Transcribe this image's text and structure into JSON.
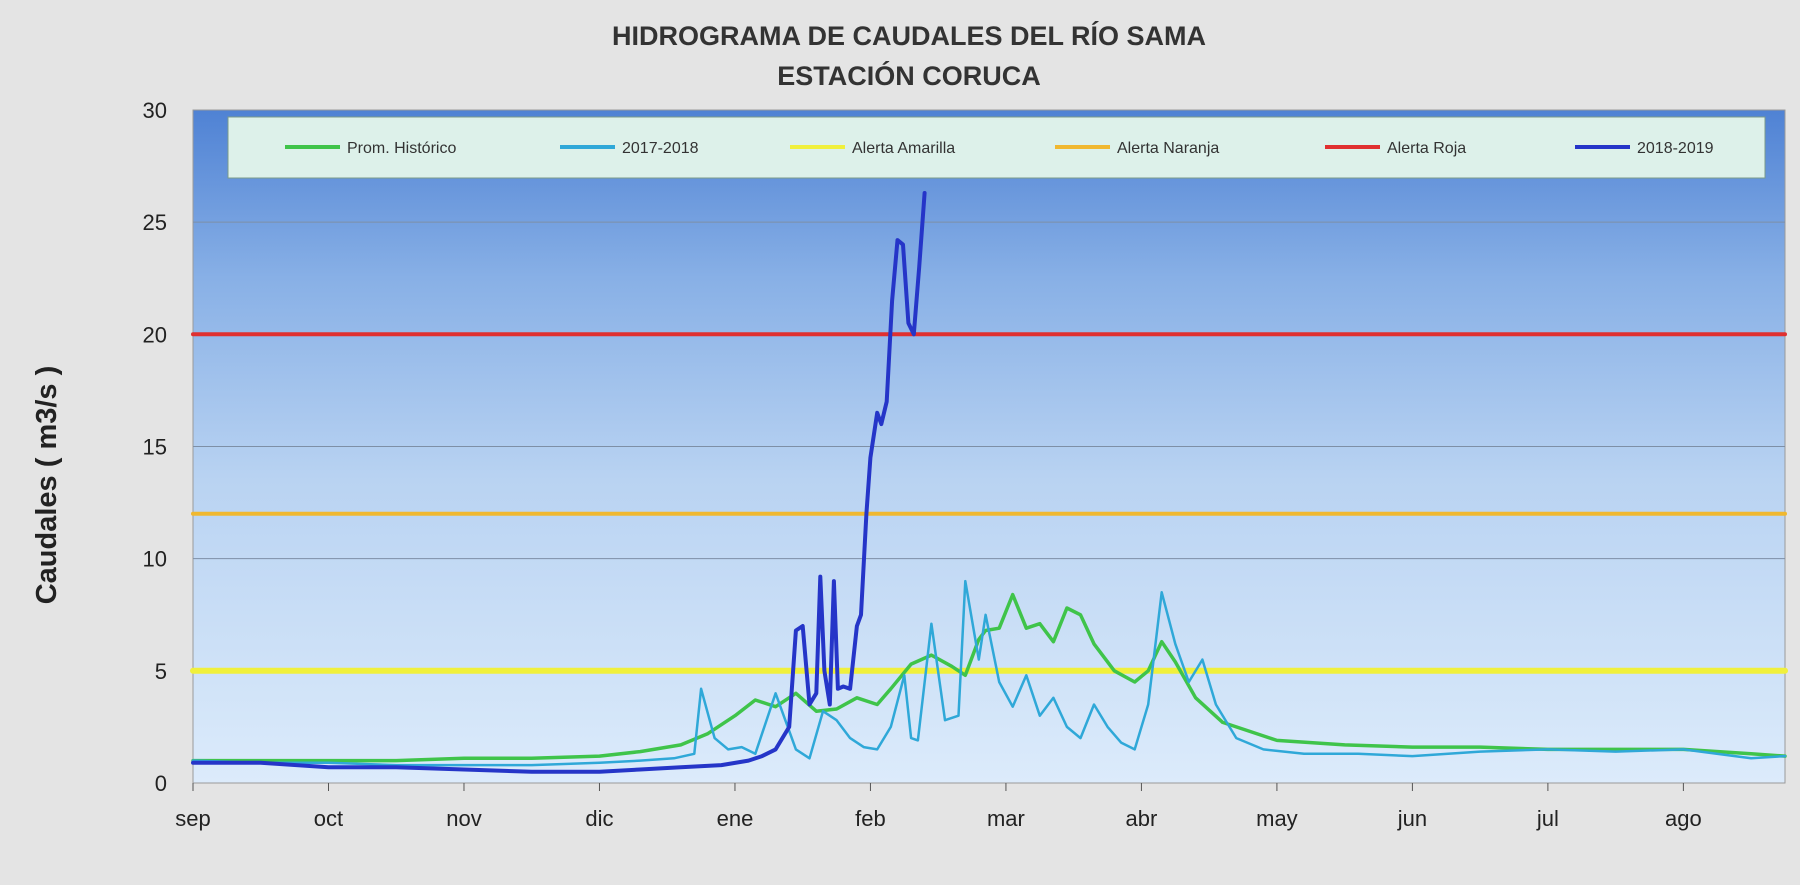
{
  "chart_data": {
    "type": "line",
    "title": "HIDROGRAMA DE CAUDALES DEL RÍO SAMA",
    "subtitle": "ESTACIÓN CORUCA",
    "xlabel": "",
    "ylabel": "Caudales ( m3/s )",
    "ylim": [
      0,
      30
    ],
    "yticks": [
      "0",
      "5",
      "10",
      "15",
      "20",
      "25",
      "30"
    ],
    "xlim": [
      0,
      11.75
    ],
    "xticks": [
      "sep",
      "oct",
      "nov",
      "dic",
      "ene",
      "feb",
      "mar",
      "abr",
      "may",
      "jun",
      "jul",
      "ago"
    ],
    "grid": true,
    "legend_position": "top",
    "colors": {
      "prom_historico": "#3fc44a",
      "y2017_2018": "#2fa8d8",
      "alerta_amarilla": "#f0f03c",
      "alerta_naranja": "#f0b830",
      "alerta_roja": "#e03030",
      "y2018_2019": "#2535c8"
    },
    "series": [
      {
        "name": "Prom. Histórico",
        "color": "#3fc44a",
        "x": [
          0,
          0.5,
          1,
          1.5,
          2,
          2.5,
          3,
          3.3,
          3.6,
          3.8,
          4.0,
          4.15,
          4.3,
          4.45,
          4.6,
          4.75,
          4.9,
          5.05,
          5.15,
          5.3,
          5.45,
          5.6,
          5.7,
          5.8,
          5.85,
          5.95,
          6.05,
          6.15,
          6.25,
          6.35,
          6.45,
          6.55,
          6.65,
          6.8,
          6.95,
          7.05,
          7.15,
          7.25,
          7.4,
          7.6,
          7.8,
          8.0,
          8.5,
          9,
          9.5,
          10,
          10.5,
          11,
          11.5,
          11.75
        ],
        "y": [
          1.0,
          1.0,
          1.0,
          1.0,
          1.1,
          1.1,
          1.2,
          1.4,
          1.7,
          2.2,
          3.0,
          3.7,
          3.4,
          4.0,
          3.2,
          3.3,
          3.8,
          3.5,
          4.2,
          5.3,
          5.7,
          5.2,
          4.8,
          6.4,
          6.8,
          6.9,
          8.4,
          6.9,
          7.1,
          6.3,
          7.8,
          7.5,
          6.2,
          5.0,
          4.5,
          5.0,
          6.3,
          5.4,
          3.8,
          2.7,
          2.3,
          1.9,
          1.7,
          1.6,
          1.6,
          1.5,
          1.5,
          1.5,
          1.3,
          1.2
        ]
      },
      {
        "name": "2017-2018",
        "color": "#2fa8d8",
        "x": [
          0,
          0.5,
          1,
          1.5,
          2,
          2.5,
          3,
          3.3,
          3.55,
          3.7,
          3.75,
          3.85,
          3.95,
          4.05,
          4.15,
          4.3,
          4.45,
          4.55,
          4.65,
          4.75,
          4.85,
          4.95,
          5.05,
          5.15,
          5.25,
          5.3,
          5.35,
          5.45,
          5.55,
          5.65,
          5.7,
          5.8,
          5.85,
          5.95,
          6.05,
          6.15,
          6.25,
          6.35,
          6.45,
          6.55,
          6.65,
          6.75,
          6.85,
          6.95,
          7.05,
          7.15,
          7.25,
          7.35,
          7.45,
          7.55,
          7.7,
          7.9,
          8.2,
          8.6,
          9,
          9.5,
          10,
          10.5,
          11,
          11.5,
          11.75
        ],
        "y": [
          1.0,
          0.9,
          0.9,
          0.8,
          0.8,
          0.8,
          0.9,
          1.0,
          1.1,
          1.3,
          4.2,
          2.0,
          1.5,
          1.6,
          1.3,
          4.0,
          1.5,
          1.1,
          3.2,
          2.8,
          2.0,
          1.6,
          1.5,
          2.5,
          4.8,
          2.0,
          1.9,
          7.1,
          2.8,
          3.0,
          9.0,
          5.5,
          7.5,
          4.5,
          3.4,
          4.8,
          3.0,
          3.8,
          2.5,
          2.0,
          3.5,
          2.5,
          1.8,
          1.5,
          3.5,
          8.5,
          6.2,
          4.5,
          5.5,
          3.5,
          2.0,
          1.5,
          1.3,
          1.3,
          1.2,
          1.4,
          1.5,
          1.4,
          1.5,
          1.1,
          1.2
        ]
      },
      {
        "name": "Alerta Amarilla",
        "color": "#f0f03c",
        "x": [
          0,
          11.75
        ],
        "y": [
          5,
          5
        ]
      },
      {
        "name": "Alerta Naranja",
        "color": "#f0b830",
        "x": [
          0,
          11.75
        ],
        "y": [
          12,
          12
        ]
      },
      {
        "name": "Alerta Roja",
        "color": "#e03030",
        "x": [
          0,
          11.75
        ],
        "y": [
          20,
          20
        ]
      },
      {
        "name": "2018-2019",
        "color": "#2535c8",
        "x": [
          0,
          0.5,
          1,
          1.5,
          2,
          2.5,
          3,
          3.3,
          3.6,
          3.9,
          4.1,
          4.2,
          4.3,
          4.4,
          4.45,
          4.5,
          4.55,
          4.6,
          4.63,
          4.66,
          4.7,
          4.73,
          4.76,
          4.8,
          4.85,
          4.9,
          4.93,
          4.97,
          5.0,
          5.05,
          5.08,
          5.12,
          5.16,
          5.2,
          5.24,
          5.28,
          5.32,
          5.36,
          5.4
        ],
        "y": [
          0.9,
          0.9,
          0.7,
          0.7,
          0.6,
          0.5,
          0.5,
          0.6,
          0.7,
          0.8,
          1.0,
          1.2,
          1.5,
          2.5,
          6.8,
          7.0,
          3.5,
          4.0,
          9.2,
          5.0,
          3.5,
          9.0,
          4.2,
          4.3,
          4.2,
          7.0,
          7.5,
          12.0,
          14.5,
          16.5,
          16.0,
          17.0,
          21.5,
          24.2,
          24.0,
          20.5,
          20.0,
          23.0,
          26.3
        ]
      }
    ]
  }
}
